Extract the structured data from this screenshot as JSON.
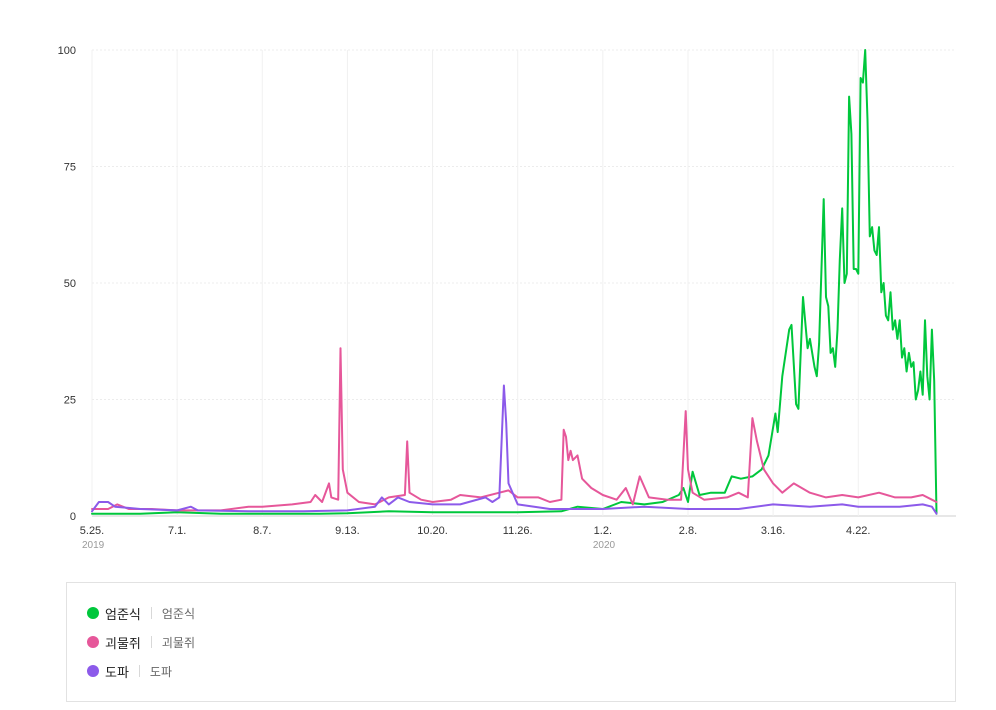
{
  "chart_data": {
    "type": "line",
    "ylim": [
      0,
      100
    ],
    "y_ticks": [
      0,
      25,
      50,
      75,
      100
    ],
    "y_tick_labels": [
      "0",
      "25",
      "50",
      "75",
      "100"
    ],
    "x_range": [
      "2019-05-25",
      "2020-05-31"
    ],
    "x_ticks": [
      {
        "date": "2019-05-25",
        "label": "5.25."
      },
      {
        "date": "2019-07-01",
        "label": "7.1."
      },
      {
        "date": "2019-08-07",
        "label": "8.7."
      },
      {
        "date": "2019-09-13",
        "label": "9.13."
      },
      {
        "date": "2019-10-20",
        "label": "10.20."
      },
      {
        "date": "2019-11-26",
        "label": "11.26."
      },
      {
        "date": "2020-01-02",
        "label": "1.2."
      },
      {
        "date": "2020-02-08",
        "label": "2.8."
      },
      {
        "date": "2020-03-16",
        "label": "3.16."
      },
      {
        "date": "2020-04-22",
        "label": "4.22."
      }
    ],
    "year_labels": [
      {
        "date": "2019-05-25",
        "label": "2019"
      },
      {
        "date": "2020-01-02",
        "label": "2020"
      }
    ],
    "grid": true,
    "legend_position": "bottom",
    "series": [
      {
        "name": "엄준식",
        "color": "#00c73c",
        "points": [
          [
            "2019-05-25",
            0.5
          ],
          [
            "2019-06-15",
            0.5
          ],
          [
            "2019-07-01",
            0.8
          ],
          [
            "2019-07-20",
            0.5
          ],
          [
            "2019-08-07",
            0.5
          ],
          [
            "2019-09-01",
            0.5
          ],
          [
            "2019-09-13",
            0.6
          ],
          [
            "2019-10-01",
            1.0
          ],
          [
            "2019-10-20",
            0.8
          ],
          [
            "2019-11-10",
            0.8
          ],
          [
            "2019-11-26",
            0.8
          ],
          [
            "2019-12-15",
            1.0
          ],
          [
            "2019-12-22",
            2.0
          ],
          [
            "2020-01-02",
            1.5
          ],
          [
            "2020-01-10",
            3.0
          ],
          [
            "2020-01-20",
            2.5
          ],
          [
            "2020-01-28",
            3.0
          ],
          [
            "2020-02-04",
            4.5
          ],
          [
            "2020-02-06",
            6.0
          ],
          [
            "2020-02-08",
            3.0
          ],
          [
            "2020-02-10",
            9.5
          ],
          [
            "2020-02-13",
            4.5
          ],
          [
            "2020-02-18",
            5.0
          ],
          [
            "2020-02-24",
            5.0
          ],
          [
            "2020-02-27",
            8.5
          ],
          [
            "2020-03-02",
            8.0
          ],
          [
            "2020-03-07",
            8.5
          ],
          [
            "2020-03-11",
            10.0
          ],
          [
            "2020-03-14",
            13.0
          ],
          [
            "2020-03-17",
            22.0
          ],
          [
            "2020-03-18",
            18.0
          ],
          [
            "2020-03-20",
            30.0
          ],
          [
            "2020-03-23",
            40.0
          ],
          [
            "2020-03-24",
            41.0
          ],
          [
            "2020-03-26",
            24.0
          ],
          [
            "2020-03-27",
            23.0
          ],
          [
            "2020-03-29",
            47.0
          ],
          [
            "2020-03-31",
            36.0
          ],
          [
            "2020-04-01",
            38.0
          ],
          [
            "2020-04-03",
            32.0
          ],
          [
            "2020-04-04",
            30.0
          ],
          [
            "2020-04-05",
            37.0
          ],
          [
            "2020-04-07",
            68.0
          ],
          [
            "2020-04-08",
            47.0
          ],
          [
            "2020-04-09",
            45.0
          ],
          [
            "2020-04-10",
            35.0
          ],
          [
            "2020-04-11",
            36.0
          ],
          [
            "2020-04-12",
            32.0
          ],
          [
            "2020-04-13",
            40.0
          ],
          [
            "2020-04-14",
            55.0
          ],
          [
            "2020-04-15",
            66.0
          ],
          [
            "2020-04-16",
            50.0
          ],
          [
            "2020-04-17",
            52.0
          ],
          [
            "2020-04-18",
            90.0
          ],
          [
            "2020-04-19",
            82.0
          ],
          [
            "2020-04-20",
            53.0
          ],
          [
            "2020-04-21",
            53.0
          ],
          [
            "2020-04-22",
            52.0
          ],
          [
            "2020-04-23",
            94.0
          ],
          [
            "2020-04-24",
            93.0
          ],
          [
            "2020-04-25",
            100.0
          ],
          [
            "2020-04-26",
            85.0
          ],
          [
            "2020-04-27",
            60.0
          ],
          [
            "2020-04-28",
            62.0
          ],
          [
            "2020-04-29",
            57.0
          ],
          [
            "2020-04-30",
            56.0
          ],
          [
            "2020-05-01",
            62.0
          ],
          [
            "2020-05-02",
            48.0
          ],
          [
            "2020-05-03",
            50.0
          ],
          [
            "2020-05-04",
            43.0
          ],
          [
            "2020-05-05",
            42.0
          ],
          [
            "2020-05-06",
            48.0
          ],
          [
            "2020-05-07",
            40.0
          ],
          [
            "2020-05-08",
            42.0
          ],
          [
            "2020-05-09",
            38.0
          ],
          [
            "2020-05-10",
            42.0
          ],
          [
            "2020-05-11",
            34.0
          ],
          [
            "2020-05-12",
            36.0
          ],
          [
            "2020-05-13",
            31.0
          ],
          [
            "2020-05-14",
            35.0
          ],
          [
            "2020-05-15",
            32.0
          ],
          [
            "2020-05-16",
            33.0
          ],
          [
            "2020-05-17",
            25.0
          ],
          [
            "2020-05-18",
            27.0
          ],
          [
            "2020-05-19",
            31.0
          ],
          [
            "2020-05-20",
            26.0
          ],
          [
            "2020-05-21",
            42.0
          ],
          [
            "2020-05-22",
            30.0
          ],
          [
            "2020-05-23",
            25.0
          ],
          [
            "2020-05-24",
            40.0
          ],
          [
            "2020-05-25",
            29.0
          ],
          [
            "2020-05-26",
            0.5
          ]
        ]
      },
      {
        "name": "괴물쥐",
        "color": "#e6579a",
        "points": [
          [
            "2019-05-25",
            1.5
          ],
          [
            "2019-06-01",
            1.5
          ],
          [
            "2019-06-05",
            2.5
          ],
          [
            "2019-06-10",
            1.5
          ],
          [
            "2019-06-20",
            1.5
          ],
          [
            "2019-07-01",
            1.2
          ],
          [
            "2019-07-20",
            1.2
          ],
          [
            "2019-08-01",
            2.0
          ],
          [
            "2019-08-07",
            2.0
          ],
          [
            "2019-08-20",
            2.5
          ],
          [
            "2019-08-28",
            3.0
          ],
          [
            "2019-08-30",
            4.5
          ],
          [
            "2019-09-02",
            3.0
          ],
          [
            "2019-09-05",
            7.0
          ],
          [
            "2019-09-06",
            4.0
          ],
          [
            "2019-09-09",
            3.5
          ],
          [
            "2019-09-10",
            36.0
          ],
          [
            "2019-09-11",
            10.0
          ],
          [
            "2019-09-13",
            5.0
          ],
          [
            "2019-09-18",
            3.0
          ],
          [
            "2019-09-25",
            2.5
          ],
          [
            "2019-10-01",
            4.0
          ],
          [
            "2019-10-08",
            4.5
          ],
          [
            "2019-10-09",
            16.0
          ],
          [
            "2019-10-10",
            5.0
          ],
          [
            "2019-10-15",
            3.5
          ],
          [
            "2019-10-20",
            3.0
          ],
          [
            "2019-10-28",
            3.5
          ],
          [
            "2019-11-01",
            4.5
          ],
          [
            "2019-11-10",
            4.0
          ],
          [
            "2019-11-18",
            5.0
          ],
          [
            "2019-11-22",
            5.5
          ],
          [
            "2019-11-26",
            4.0
          ],
          [
            "2019-12-05",
            4.0
          ],
          [
            "2019-12-10",
            3.0
          ],
          [
            "2019-12-15",
            3.5
          ],
          [
            "2019-12-16",
            18.5
          ],
          [
            "2019-12-17",
            17.0
          ],
          [
            "2019-12-18",
            12.0
          ],
          [
            "2019-12-19",
            14.0
          ],
          [
            "2019-12-20",
            12.0
          ],
          [
            "2019-12-22",
            13.0
          ],
          [
            "2019-12-24",
            8.0
          ],
          [
            "2019-12-28",
            6.0
          ],
          [
            "2020-01-02",
            4.5
          ],
          [
            "2020-01-08",
            3.5
          ],
          [
            "2020-01-12",
            6.0
          ],
          [
            "2020-01-15",
            2.5
          ],
          [
            "2020-01-18",
            8.5
          ],
          [
            "2020-01-22",
            4.0
          ],
          [
            "2020-01-30",
            3.5
          ],
          [
            "2020-02-05",
            3.5
          ],
          [
            "2020-02-07",
            22.5
          ],
          [
            "2020-02-08",
            10.0
          ],
          [
            "2020-02-10",
            5.0
          ],
          [
            "2020-02-15",
            3.5
          ],
          [
            "2020-02-25",
            4.0
          ],
          [
            "2020-03-01",
            5.0
          ],
          [
            "2020-03-05",
            4.0
          ],
          [
            "2020-03-07",
            21.0
          ],
          [
            "2020-03-09",
            16.0
          ],
          [
            "2020-03-12",
            10.0
          ],
          [
            "2020-03-16",
            7.0
          ],
          [
            "2020-03-20",
            5.0
          ],
          [
            "2020-03-25",
            7.0
          ],
          [
            "2020-04-01",
            5.0
          ],
          [
            "2020-04-08",
            4.0
          ],
          [
            "2020-04-15",
            4.5
          ],
          [
            "2020-04-22",
            4.0
          ],
          [
            "2020-05-01",
            5.0
          ],
          [
            "2020-05-08",
            4.0
          ],
          [
            "2020-05-15",
            4.0
          ],
          [
            "2020-05-20",
            4.5
          ],
          [
            "2020-05-24",
            3.5
          ],
          [
            "2020-05-26",
            3.0
          ]
        ]
      },
      {
        "name": "도파",
        "color": "#8c5aea",
        "points": [
          [
            "2019-05-25",
            1.0
          ],
          [
            "2019-05-28",
            3.0
          ],
          [
            "2019-06-01",
            3.0
          ],
          [
            "2019-06-04",
            2.0
          ],
          [
            "2019-06-15",
            1.5
          ],
          [
            "2019-07-01",
            1.2
          ],
          [
            "2019-07-07",
            2.0
          ],
          [
            "2019-07-10",
            1.2
          ],
          [
            "2019-08-01",
            1.0
          ],
          [
            "2019-08-07",
            1.0
          ],
          [
            "2019-08-25",
            1.0
          ],
          [
            "2019-09-13",
            1.2
          ],
          [
            "2019-09-25",
            2.0
          ],
          [
            "2019-09-28",
            4.0
          ],
          [
            "2019-10-01",
            2.5
          ],
          [
            "2019-10-05",
            4.0
          ],
          [
            "2019-10-10",
            3.0
          ],
          [
            "2019-10-20",
            2.5
          ],
          [
            "2019-11-01",
            2.5
          ],
          [
            "2019-11-12",
            4.0
          ],
          [
            "2019-11-15",
            3.0
          ],
          [
            "2019-11-18",
            4.0
          ],
          [
            "2019-11-20",
            28.0
          ],
          [
            "2019-11-21",
            20.0
          ],
          [
            "2019-11-22",
            7.0
          ],
          [
            "2019-11-26",
            2.5
          ],
          [
            "2019-12-10",
            1.5
          ],
          [
            "2020-01-02",
            1.5
          ],
          [
            "2020-01-20",
            2.0
          ],
          [
            "2020-02-08",
            1.5
          ],
          [
            "2020-03-01",
            1.5
          ],
          [
            "2020-03-16",
            2.5
          ],
          [
            "2020-04-01",
            2.0
          ],
          [
            "2020-04-15",
            2.5
          ],
          [
            "2020-04-22",
            2.0
          ],
          [
            "2020-05-10",
            2.0
          ],
          [
            "2020-05-20",
            2.5
          ],
          [
            "2020-05-24",
            2.0
          ],
          [
            "2020-05-26",
            0.5
          ]
        ]
      }
    ]
  },
  "legend": {
    "items": [
      {
        "name": "엄준식",
        "sub": "엄준식",
        "color": "#00c73c"
      },
      {
        "name": "괴물쥐",
        "sub": "괴물쥐",
        "color": "#e6579a"
      },
      {
        "name": "도파",
        "sub": "도파",
        "color": "#8c5aea"
      }
    ]
  }
}
